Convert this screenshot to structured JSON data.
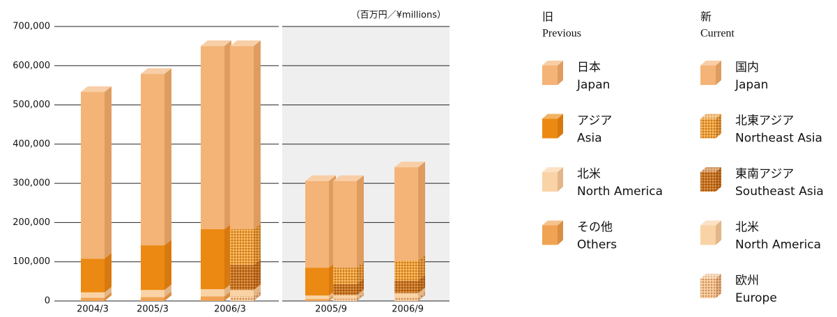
{
  "chart_data": {
    "type": "bar3d_stacked",
    "unit_label": "（百万円／¥millions）",
    "categories": [
      "2004/3",
      "2005/3",
      "2006/3",
      "2005/9",
      "2006/9"
    ],
    "ylim": [
      0,
      700000
    ],
    "yticks": [
      {
        "value": 0,
        "label": "0"
      },
      {
        "value": 100000,
        "label": "100,000"
      },
      {
        "value": 200000,
        "label": "200,000"
      },
      {
        "value": 300000,
        "label": "300,000"
      },
      {
        "value": 400000,
        "label": "400,000"
      },
      {
        "value": 500000,
        "label": "500,000"
      },
      {
        "value": 600000,
        "label": "600,000"
      },
      {
        "value": 700000,
        "label": "700,000"
      }
    ],
    "grid": true,
    "previous": {
      "heading_ja": "旧",
      "heading_en": "Previous",
      "series": [
        {
          "name": "Others",
          "name_ja": "その他",
          "color": "#f0a352",
          "dotted": false,
          "values": [
            8000,
            10000,
            12000,
            5000,
            null
          ]
        },
        {
          "name": "North America",
          "name_ja": "北米",
          "color": "#f9d3a6",
          "dotted": false,
          "values": [
            14000,
            18000,
            18000,
            9000,
            null
          ]
        },
        {
          "name": "Asia",
          "name_ja": "アジア",
          "color": "#ec8912",
          "dotted": false,
          "values": [
            86000,
            114000,
            153000,
            71000,
            null
          ]
        },
        {
          "name": "Japan",
          "name_ja": "日本",
          "color": "#f4b477",
          "dotted": false,
          "values": [
            425000,
            437000,
            467000,
            221000,
            null
          ]
        }
      ]
    },
    "current": {
      "heading_ja": "新",
      "heading_en": "Current",
      "series": [
        {
          "name": "Europe",
          "name_ja": "欧州",
          "color": "#f7c38e",
          "dotted": true,
          "values": [
            null,
            null,
            12000,
            6000,
            8000
          ]
        },
        {
          "name": "North America",
          "name_ja": "北米",
          "color": "#f9d3a6",
          "dotted": false,
          "values": [
            null,
            null,
            16000,
            9000,
            12000
          ]
        },
        {
          "name": "Southeast Asia",
          "name_ja": "東南アジア",
          "color": "#c9721c",
          "dotted": true,
          "values": [
            null,
            null,
            64000,
            28000,
            32000
          ]
        },
        {
          "name": "Northeast Asia",
          "name_ja": "北東アジア",
          "color": "#f2a238",
          "dotted": true,
          "values": [
            null,
            null,
            91000,
            42000,
            51000
          ]
        },
        {
          "name": "Japan",
          "name_ja": "国内",
          "color": "#f4b477",
          "dotted": false,
          "values": [
            null,
            null,
            467000,
            221000,
            238000
          ]
        }
      ]
    }
  }
}
